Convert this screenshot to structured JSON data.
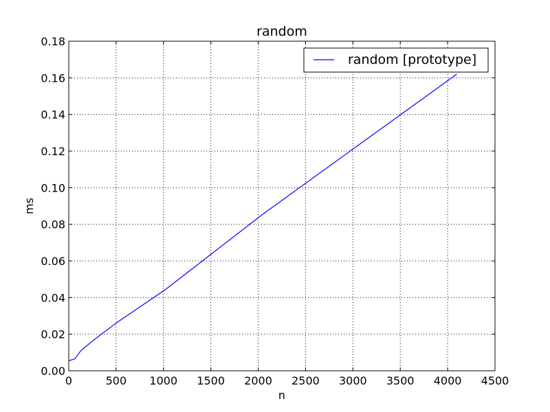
{
  "chart_data": {
    "type": "line",
    "title": "random",
    "xlabel": "n",
    "ylabel": "ms",
    "xlim": [
      0,
      4500
    ],
    "ylim": [
      0,
      0.18
    ],
    "xticks": [
      0,
      500,
      1000,
      1500,
      2000,
      2500,
      3000,
      3500,
      4000,
      4500
    ],
    "xtick_labels": [
      "0",
      "500",
      "1000",
      "1500",
      "2000",
      "2500",
      "3000",
      "3500",
      "4000",
      "4500"
    ],
    "yticks": [
      0,
      0.02,
      0.04,
      0.06,
      0.08,
      0.1,
      0.12,
      0.14,
      0.16,
      0.18
    ],
    "ytick_labels": [
      "0.00",
      "0.02",
      "0.04",
      "0.06",
      "0.08",
      "0.10",
      "0.12",
      "0.14",
      "0.16",
      "0.18"
    ],
    "grid": true,
    "legend_position": "top-right",
    "series": [
      {
        "name": "random [prototype]",
        "color": "#0000ff",
        "x": [
          1,
          2,
          4,
          8,
          16,
          32,
          64,
          128,
          256,
          512,
          1024,
          2048,
          4096
        ],
        "y": [
          0.0055,
          0.0055,
          0.0055,
          0.0056,
          0.0058,
          0.006,
          0.0065,
          0.011,
          0.0165,
          0.0265,
          0.0445,
          0.0855,
          0.162
        ]
      }
    ]
  }
}
